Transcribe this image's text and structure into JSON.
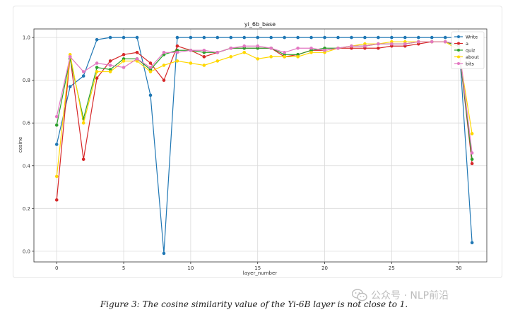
{
  "caption": "Figure 3: The cosine similarity value of the Yi-6B layer is not close to 1.",
  "watermark": {
    "text": "公众号 · NLP前沿"
  },
  "chart_data": {
    "type": "line",
    "title": "yi_6b_base",
    "xlabel": "layer_number",
    "ylabel": "cosine",
    "xlim": [
      -1.7,
      32.1
    ],
    "ylim": [
      -0.05,
      1.04
    ],
    "xticks": [
      0,
      5,
      10,
      15,
      20,
      25,
      30
    ],
    "yticks": [
      0.0,
      0.2,
      0.4,
      0.6,
      0.8,
      1.0
    ],
    "ytick_labels": [
      "0.0",
      "0.2",
      "0.4",
      "0.6",
      "0.8",
      "1.0"
    ],
    "grid": true,
    "legend_position": "top-right",
    "x": [
      0,
      1,
      2,
      3,
      4,
      5,
      6,
      7,
      8,
      9,
      10,
      11,
      12,
      13,
      14,
      15,
      16,
      17,
      18,
      19,
      20,
      21,
      22,
      23,
      24,
      25,
      26,
      27,
      28,
      29,
      30,
      31
    ],
    "series": [
      {
        "name": "Write",
        "color": "#1f77b4",
        "values": [
          0.5,
          0.77,
          0.82,
          0.99,
          1.0,
          1.0,
          1.0,
          0.73,
          -0.01,
          1.0,
          1.0,
          1.0,
          1.0,
          1.0,
          1.0,
          1.0,
          1.0,
          1.0,
          1.0,
          1.0,
          1.0,
          1.0,
          1.0,
          1.0,
          1.0,
          1.0,
          1.0,
          1.0,
          1.0,
          1.0,
          1.0,
          0.04
        ]
      },
      {
        "name": "a",
        "color": "#d62728",
        "values": [
          0.24,
          0.91,
          0.43,
          0.81,
          0.89,
          0.92,
          0.93,
          0.88,
          0.8,
          0.96,
          0.94,
          0.91,
          0.93,
          0.95,
          0.95,
          0.95,
          0.95,
          0.91,
          0.92,
          0.94,
          0.94,
          0.95,
          0.95,
          0.95,
          0.95,
          0.96,
          0.96,
          0.97,
          0.98,
          0.98,
          0.96,
          0.41
        ]
      },
      {
        "name": "quiz",
        "color": "#2ca02c",
        "values": [
          0.59,
          0.9,
          0.62,
          0.86,
          0.85,
          0.9,
          0.9,
          0.85,
          0.92,
          0.94,
          0.94,
          0.93,
          0.93,
          0.95,
          0.95,
          0.95,
          0.95,
          0.92,
          0.92,
          0.94,
          0.95,
          0.95,
          0.96,
          0.96,
          0.97,
          0.97,
          0.97,
          0.98,
          0.98,
          0.98,
          0.96,
          0.43
        ]
      },
      {
        "name": "about",
        "color": "#ffd700",
        "values": [
          0.35,
          0.92,
          0.6,
          0.84,
          0.84,
          0.89,
          0.89,
          0.84,
          0.87,
          0.89,
          0.88,
          0.87,
          0.89,
          0.91,
          0.93,
          0.9,
          0.91,
          0.91,
          0.91,
          0.93,
          0.93,
          0.95,
          0.96,
          0.97,
          0.97,
          0.98,
          0.98,
          0.98,
          0.98,
          0.98,
          0.94,
          0.55
        ]
      },
      {
        "name": "bits",
        "color": "#e377c2",
        "values": [
          0.63,
          0.91,
          0.84,
          0.88,
          0.87,
          0.86,
          0.9,
          0.86,
          0.93,
          0.93,
          0.94,
          0.94,
          0.93,
          0.95,
          0.96,
          0.96,
          0.95,
          0.93,
          0.95,
          0.95,
          0.94,
          0.95,
          0.96,
          0.96,
          0.97,
          0.97,
          0.97,
          0.98,
          0.98,
          0.98,
          0.97,
          0.46
        ]
      }
    ]
  }
}
